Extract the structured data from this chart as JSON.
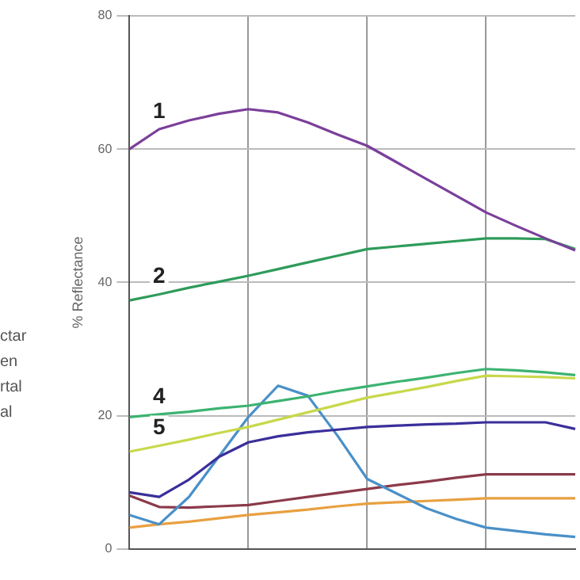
{
  "chart_data": {
    "type": "line",
    "ylabel": "% Reflectance",
    "annotations": [
      "ctar",
      "en",
      "rtal",
      "al"
    ],
    "categories": [
      null,
      null,
      null,
      null,
      null,
      null,
      null,
      null,
      null,
      null,
      null,
      null,
      null,
      null,
      null,
      null
    ],
    "ylim": [
      0,
      80
    ],
    "yticks": [
      0,
      20,
      40,
      60,
      80
    ],
    "grid": true,
    "legend": false,
    "marker": "none",
    "line_style": "solid",
    "series": [
      {
        "name": "1",
        "color": "#7b3f9a",
        "values": [
          60,
          63,
          64.3,
          65.3,
          66,
          65.5,
          64,
          62.2,
          60.5,
          58,
          55.5,
          53,
          50.5,
          48.5,
          46.6,
          44.8
        ]
      },
      {
        "name": "2",
        "color": "#2e9b5a",
        "values": [
          37.3,
          38.2,
          39.2,
          40.1,
          41,
          42,
          43,
          44,
          45,
          45.4,
          45.8,
          46.2,
          46.6,
          46.6,
          46.5,
          45
        ]
      },
      {
        "name": "4",
        "color": "#3cb371",
        "values": [
          19.8,
          20.2,
          20.6,
          21.1,
          21.5,
          22.2,
          22.9,
          23.7,
          24.4,
          25.1,
          25.7,
          26.4,
          27,
          26.8,
          26.5,
          26.1
        ]
      },
      {
        "name": "5",
        "color": "#c8d84a",
        "values": [
          14.6,
          15.5,
          16.4,
          17.4,
          18.3,
          19.4,
          20.5,
          21.6,
          22.7,
          23.5,
          24.3,
          25.2,
          26,
          25.9,
          25.8,
          25.6
        ]
      },
      {
        "color": "#3a2f9a",
        "values": [
          8.5,
          7.8,
          10.4,
          13.8,
          16,
          16.9,
          17.5,
          17.9,
          18.3,
          18.5,
          18.7,
          18.8,
          19,
          19,
          19,
          18
        ]
      },
      {
        "color": "#4a90c8",
        "values": [
          5.1,
          3.7,
          7.8,
          13.8,
          19.8,
          24.5,
          23,
          17,
          10.5,
          8.3,
          6.1,
          4.5,
          3.2,
          2.7,
          2.2,
          1.8
        ]
      },
      {
        "color": "#8b3a4a",
        "values": [
          8,
          6.3,
          6.2,
          6.4,
          6.6,
          7.2,
          7.8,
          8.4,
          9,
          9.6,
          10.1,
          10.7,
          11.2,
          11.2,
          11.2,
          11.2
        ]
      },
      {
        "color": "#e8a040",
        "values": [
          3.2,
          3.7,
          4.1,
          4.6,
          5.1,
          5.5,
          5.9,
          6.4,
          6.8,
          7,
          7.2,
          7.4,
          7.6,
          7.6,
          7.6,
          7.6
        ]
      }
    ]
  }
}
